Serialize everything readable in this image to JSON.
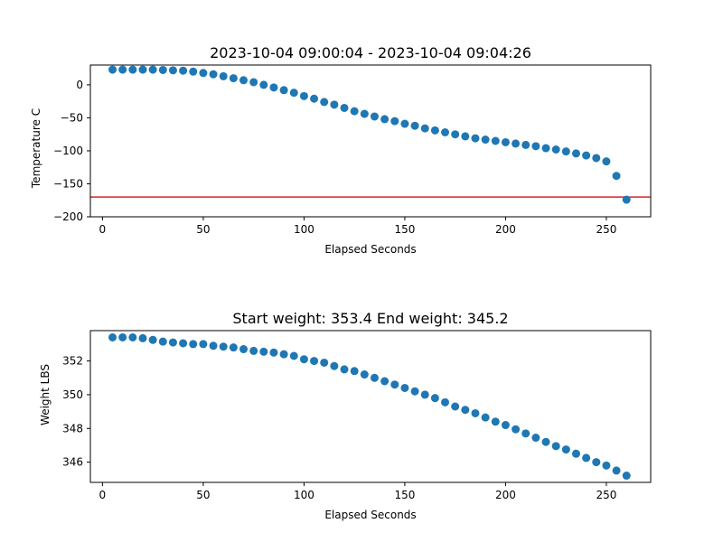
{
  "colors": {
    "point": "#1f77b4",
    "ref_line": "#d62728",
    "axis": "#000000"
  },
  "chart_data": [
    {
      "type": "scatter",
      "title": "2023-10-04 09:00:04 - 2023-10-04 09:04:26",
      "xlabel": "Elapsed Seconds",
      "ylabel": "Temperature C",
      "xlim": [
        -6,
        272
      ],
      "ylim": [
        -200,
        30
      ],
      "xticks": [
        0,
        50,
        100,
        150,
        200,
        250
      ],
      "yticks": [
        -200,
        -150,
        -100,
        -50,
        0
      ],
      "ytick_labels": [
        "−200",
        "−150",
        "−100",
        "−50",
        "0"
      ],
      "grid": false,
      "hline": {
        "y": -170,
        "color": "red"
      },
      "x": [
        5,
        10,
        15,
        20,
        25,
        30,
        35,
        40,
        45,
        50,
        55,
        60,
        65,
        70,
        75,
        80,
        85,
        90,
        95,
        100,
        105,
        110,
        115,
        120,
        125,
        130,
        135,
        140,
        145,
        150,
        155,
        160,
        165,
        170,
        175,
        180,
        185,
        190,
        195,
        200,
        205,
        210,
        215,
        220,
        225,
        230,
        235,
        240,
        245,
        250,
        255,
        260
      ],
      "y": [
        23,
        23,
        23,
        23,
        23,
        22.5,
        22,
        21.5,
        20,
        18,
        16,
        13,
        10,
        7,
        4,
        0,
        -4,
        -8,
        -12,
        -17,
        -21,
        -26,
        -30,
        -35,
        -40,
        -44,
        -48,
        -52,
        -55,
        -59,
        -62,
        -66,
        -69,
        -72,
        -75,
        -78,
        -81,
        -83,
        -85,
        -87,
        -89,
        -91,
        -93,
        -96,
        -98,
        -101,
        -104,
        -107,
        -111,
        -116,
        -138,
        -174
      ]
    },
    {
      "type": "scatter",
      "title": "Start weight: 353.4 End weight: 345.2",
      "xlabel": "Elapsed Seconds",
      "ylabel": "Weight LBS",
      "xlim": [
        -6,
        272
      ],
      "ylim": [
        344.8,
        353.8
      ],
      "xticks": [
        0,
        50,
        100,
        150,
        200,
        250
      ],
      "yticks": [
        346,
        348,
        350,
        352
      ],
      "ytick_labels": [
        "346",
        "348",
        "350",
        "352"
      ],
      "grid": false,
      "x": [
        5,
        10,
        15,
        20,
        25,
        30,
        35,
        40,
        45,
        50,
        55,
        60,
        65,
        70,
        75,
        80,
        85,
        90,
        95,
        100,
        105,
        110,
        115,
        120,
        125,
        130,
        135,
        140,
        145,
        150,
        155,
        160,
        165,
        170,
        175,
        180,
        185,
        190,
        195,
        200,
        205,
        210,
        215,
        220,
        225,
        230,
        235,
        240,
        245,
        250,
        255,
        260
      ],
      "y": [
        353.4,
        353.4,
        353.4,
        353.35,
        353.25,
        353.15,
        353.1,
        353.05,
        353.0,
        353.0,
        352.9,
        352.85,
        352.8,
        352.7,
        352.6,
        352.55,
        352.5,
        352.4,
        352.3,
        352.1,
        352.0,
        351.9,
        351.7,
        351.5,
        351.4,
        351.2,
        351.0,
        350.8,
        350.6,
        350.4,
        350.2,
        350.0,
        349.8,
        349.55,
        349.3,
        349.1,
        348.9,
        348.65,
        348.4,
        348.2,
        347.95,
        347.7,
        347.45,
        347.2,
        346.95,
        346.75,
        346.5,
        346.25,
        346.0,
        345.8,
        345.5,
        345.2
      ]
    }
  ]
}
